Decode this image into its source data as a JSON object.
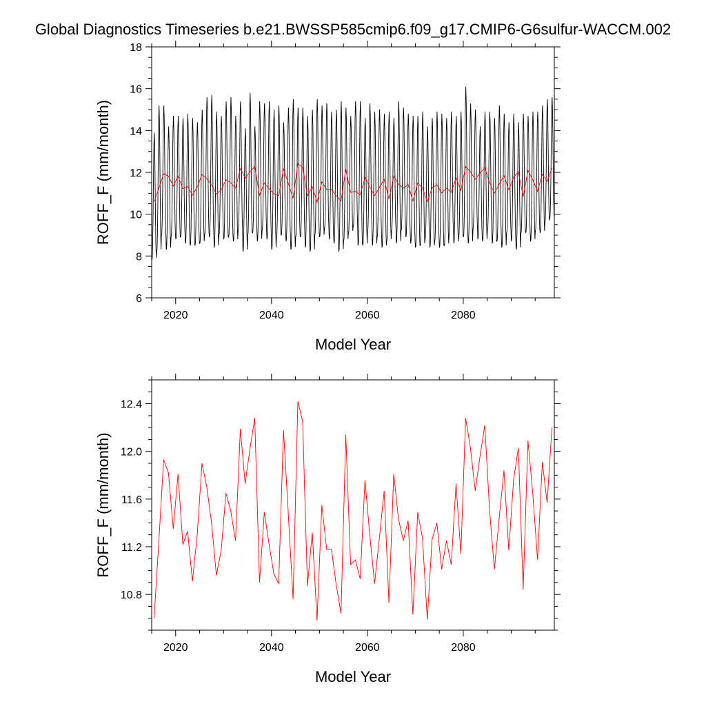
{
  "title": "Global Diagnostics Timeseries b.e21.BWSSP585cmip6.f09_g17.CMIP6-G6sulfur-WACCM.002",
  "chart_data": [
    {
      "type": "line",
      "xlabel": "Model Year",
      "ylabel": "ROFF_F (mm/month)",
      "xlim": [
        2015,
        2099
      ],
      "ylim": [
        6,
        18
      ],
      "xticks": [
        2020,
        2040,
        2060,
        2080
      ],
      "yticks": [
        6,
        8,
        10,
        12,
        14,
        16,
        18
      ],
      "series": [
        {
          "color": "#000000",
          "resolution": "monthly",
          "x_start": 2015.04,
          "x_step": 0.0833333,
          "annual_peaks": [
            13.9,
            15.2,
            15.2,
            14.2,
            14.7,
            14.7,
            14.6,
            14.8,
            14.6,
            14.4,
            15.0,
            15.6,
            15.7,
            14.9,
            14.7,
            15.4,
            15.6,
            14.7,
            15.4,
            14.1,
            15.8,
            14.2,
            15.4,
            15.3,
            15.4,
            15.0,
            15.2,
            14.4,
            15.1,
            15.5,
            15.1,
            15.1,
            14.7,
            15.0,
            15.5,
            15.2,
            15.3,
            14.9,
            15.0,
            15.4,
            15.1,
            14.7,
            15.4,
            15.4,
            14.6,
            15.3,
            14.9,
            15.0,
            14.8,
            14.9,
            14.6,
            15.4,
            15.1,
            14.8,
            14.7,
            14.7,
            14.9,
            14.2,
            14.6,
            14.9,
            14.8,
            14.6,
            14.9,
            14.7,
            14.9,
            16.1,
            15.3,
            15.0,
            14.2,
            14.9,
            14.9,
            14.6,
            15.2,
            14.8,
            14.4,
            14.8,
            14.4,
            14.8,
            14.7,
            14.9,
            14.9,
            15.2,
            15.5,
            15.6
          ],
          "annual_troughs": [
            7.8,
            8.2,
            9.0,
            8.3,
            8.9,
            8.8,
            8.9,
            8.6,
            8.5,
            8.5,
            8.6,
            9.0,
            8.9,
            8.4,
            9.0,
            8.8,
            8.9,
            8.7,
            9.2,
            8.2,
            9.0,
            9.1,
            8.7,
            9.2,
            8.8,
            8.3,
            8.9,
            9.0,
            8.7,
            8.3,
            8.9,
            8.9,
            8.4,
            8.2,
            9.0,
            8.9,
            9.3,
            8.8,
            8.6,
            8.2,
            8.7,
            9.1,
            9.4,
            8.5,
            8.5,
            9.2,
            8.5,
            8.9,
            8.4,
            8.7,
            9.2,
            8.6,
            9.2,
            8.9,
            8.6,
            8.4,
            8.5,
            8.8,
            8.4,
            8.7,
            8.4,
            8.5,
            9.0,
            8.6,
            8.9,
            8.9,
            8.6,
            9.3,
            8.8,
            8.7,
            9.2,
            8.6,
            8.7,
            8.4,
            9.1,
            8.7,
            8.3,
            9.1,
            9.1,
            8.7,
            9.2,
            9.1,
            9.6,
            9.8
          ]
        },
        {
          "color": "#ff0000",
          "resolution": "annual mean",
          "x": [
            2015.5,
            2016.5,
            2017.5,
            2018.5,
            2019.5,
            2020.5,
            2021.5,
            2022.5,
            2023.5,
            2024.5,
            2025.5,
            2026.5,
            2027.5,
            2028.5,
            2029.5,
            2030.5,
            2031.5,
            2032.5,
            2033.5,
            2034.5,
            2035.5,
            2036.5,
            2037.5,
            2038.5,
            2039.5,
            2040.5,
            2041.5,
            2042.5,
            2043.5,
            2044.5,
            2045.5,
            2046.5,
            2047.5,
            2048.5,
            2049.5,
            2050.5,
            2051.5,
            2052.5,
            2053.5,
            2054.5,
            2055.5,
            2056.5,
            2057.5,
            2058.5,
            2059.5,
            2060.5,
            2061.5,
            2062.5,
            2063.5,
            2064.5,
            2065.5,
            2066.5,
            2067.5,
            2068.5,
            2069.5,
            2070.5,
            2071.5,
            2072.5,
            2073.5,
            2074.5,
            2075.5,
            2076.5,
            2077.5,
            2078.5,
            2079.5,
            2080.5,
            2081.5,
            2082.5,
            2083.5,
            2084.5,
            2085.5,
            2086.5,
            2087.5,
            2088.5,
            2089.5,
            2090.5,
            2091.5,
            2092.5,
            2093.5,
            2094.5,
            2095.5,
            2096.5,
            2097.5,
            2098.5
          ],
          "y": [
            10.6,
            11.25,
            11.93,
            11.82,
            11.35,
            11.81,
            11.22,
            11.33,
            10.91,
            11.3,
            11.9,
            11.7,
            11.4,
            10.96,
            11.17,
            11.65,
            11.5,
            11.25,
            12.19,
            11.73,
            12.02,
            12.28,
            10.9,
            11.49,
            11.22,
            10.97,
            10.89,
            12.18,
            11.48,
            10.76,
            12.42,
            12.25,
            10.87,
            11.32,
            10.58,
            11.55,
            11.18,
            11.18,
            10.88,
            10.64,
            12.14,
            11.05,
            11.09,
            10.93,
            11.76,
            11.3,
            10.89,
            11.27,
            11.67,
            10.73,
            11.81,
            11.43,
            11.25,
            11.42,
            10.63,
            11.49,
            11.27,
            10.59,
            11.26,
            11.4,
            11.01,
            11.25,
            11.05,
            11.73,
            11.14,
            12.28,
            12.03,
            11.67,
            11.96,
            12.22,
            11.5,
            11.01,
            11.44,
            11.84,
            11.17,
            11.76,
            12.03,
            10.84,
            12.09,
            11.65,
            11.09,
            11.91,
            11.57,
            12.2
          ]
        }
      ]
    },
    {
      "type": "line",
      "xlabel": "Model Year",
      "ylabel": "ROFF_F (mm/month)",
      "xlim": [
        2015,
        2099
      ],
      "ylim": [
        10.5,
        12.6
      ],
      "xticks": [
        2020,
        2040,
        2060,
        2080
      ],
      "yticks": [
        10.8,
        11.2,
        11.6,
        12.0,
        12.4
      ],
      "series": [
        {
          "color": "#ff0000",
          "resolution": "annual mean",
          "x": [
            2015.5,
            2016.5,
            2017.5,
            2018.5,
            2019.5,
            2020.5,
            2021.5,
            2022.5,
            2023.5,
            2024.5,
            2025.5,
            2026.5,
            2027.5,
            2028.5,
            2029.5,
            2030.5,
            2031.5,
            2032.5,
            2033.5,
            2034.5,
            2035.5,
            2036.5,
            2037.5,
            2038.5,
            2039.5,
            2040.5,
            2041.5,
            2042.5,
            2043.5,
            2044.5,
            2045.5,
            2046.5,
            2047.5,
            2048.5,
            2049.5,
            2050.5,
            2051.5,
            2052.5,
            2053.5,
            2054.5,
            2055.5,
            2056.5,
            2057.5,
            2058.5,
            2059.5,
            2060.5,
            2061.5,
            2062.5,
            2063.5,
            2064.5,
            2065.5,
            2066.5,
            2067.5,
            2068.5,
            2069.5,
            2070.5,
            2071.5,
            2072.5,
            2073.5,
            2074.5,
            2075.5,
            2076.5,
            2077.5,
            2078.5,
            2079.5,
            2080.5,
            2081.5,
            2082.5,
            2083.5,
            2084.5,
            2085.5,
            2086.5,
            2087.5,
            2088.5,
            2089.5,
            2090.5,
            2091.5,
            2092.5,
            2093.5,
            2094.5,
            2095.5,
            2096.5,
            2097.5,
            2098.5
          ],
          "y": [
            10.6,
            11.25,
            11.93,
            11.82,
            11.35,
            11.81,
            11.22,
            11.33,
            10.91,
            11.3,
            11.9,
            11.7,
            11.4,
            10.96,
            11.17,
            11.65,
            11.5,
            11.25,
            12.19,
            11.73,
            12.02,
            12.28,
            10.9,
            11.49,
            11.22,
            10.97,
            10.89,
            12.18,
            11.48,
            10.76,
            12.42,
            12.25,
            10.87,
            11.32,
            10.58,
            11.55,
            11.18,
            11.18,
            10.88,
            10.64,
            12.14,
            11.05,
            11.09,
            10.93,
            11.76,
            11.3,
            10.89,
            11.27,
            11.67,
            10.73,
            11.81,
            11.43,
            11.25,
            11.42,
            10.63,
            11.49,
            11.27,
            10.59,
            11.26,
            11.4,
            11.01,
            11.25,
            11.05,
            11.73,
            11.14,
            12.28,
            12.03,
            11.67,
            11.96,
            12.22,
            11.5,
            11.01,
            11.44,
            11.84,
            11.17,
            11.76,
            12.03,
            10.84,
            12.09,
            11.65,
            11.09,
            11.91,
            11.57,
            12.2
          ]
        }
      ]
    }
  ]
}
